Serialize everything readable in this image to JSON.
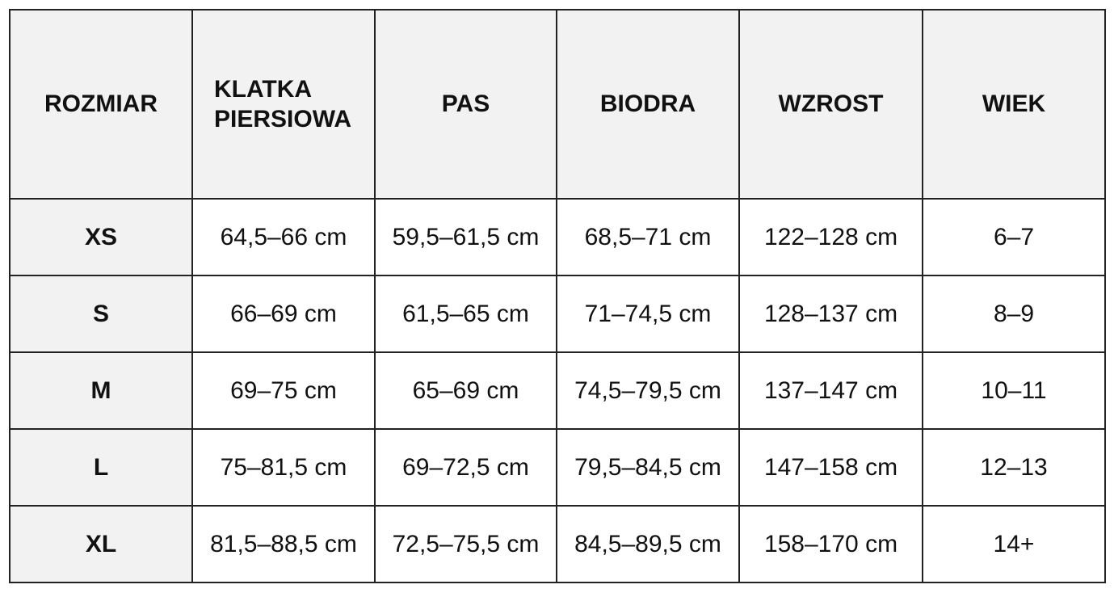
{
  "table": {
    "headers": [
      "ROZMIAR",
      "KLATKA PIERSIOWA",
      "PAS",
      "BIODRA",
      "WZROST",
      "WIEK"
    ],
    "rows": [
      [
        "XS",
        "64,5–66 cm",
        "59,5–61,5 cm",
        "68,5–71 cm",
        "122–128 cm",
        "6–7"
      ],
      [
        "S",
        "66–69 cm",
        "61,5–65 cm",
        "71–74,5 cm",
        "128–137 cm",
        "8–9"
      ],
      [
        "M",
        "69–75 cm",
        "65–69 cm",
        "74,5–79,5 cm",
        "137–147 cm",
        "10–11"
      ],
      [
        "L",
        "75–81,5 cm",
        "69–72,5 cm",
        "79,5–84,5 cm",
        "147–158 cm",
        "12–13"
      ],
      [
        "XL",
        "81,5–88,5 cm",
        "72,5–75,5 cm",
        "84,5–89,5 cm",
        "158–170 cm",
        "14+"
      ]
    ]
  },
  "colors": {
    "header_background": "#f2f2f2",
    "border": "#222222",
    "cell_background": "#ffffff"
  }
}
